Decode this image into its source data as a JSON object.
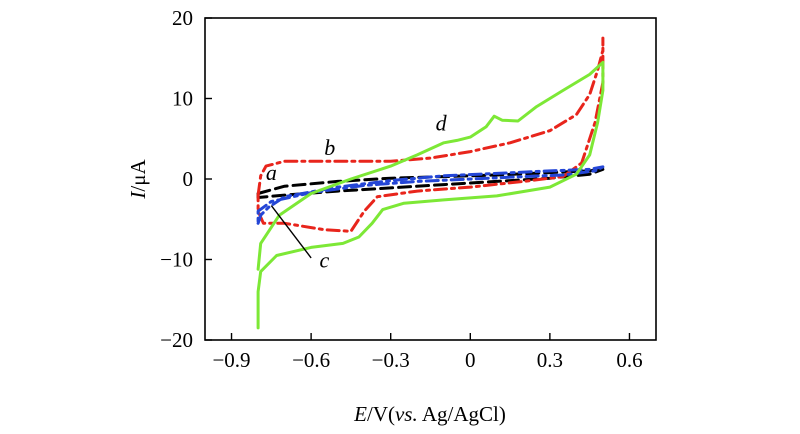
{
  "chart_data": {
    "type": "line",
    "xlabel": {
      "var": "E",
      "unit": "/V(",
      "ref_italic": "vs.",
      "ref": " Ag/AgCl)"
    },
    "ylabel": {
      "var": "I",
      "unit": "/μA"
    },
    "xlim": [
      -1.0,
      0.7
    ],
    "ylim": [
      -20,
      20
    ],
    "xticks": [
      -0.9,
      -0.6,
      -0.3,
      0,
      0.3,
      0.6
    ],
    "xtick_labels": [
      "−0.9",
      "−0.6",
      "−0.3",
      "0",
      "0.3",
      "0.6"
    ],
    "yticks": [
      -20,
      -10,
      0,
      10,
      20
    ],
    "ytick_labels": [
      "−20",
      "−10",
      "0",
      "10",
      "20"
    ],
    "grid": false,
    "series": [
      {
        "name": "a",
        "color": "#000000",
        "dash": "dash",
        "points": [
          [
            -0.8,
            -1.8
          ],
          [
            -0.7,
            -0.9
          ],
          [
            -0.5,
            -0.3
          ],
          [
            -0.3,
            0.1
          ],
          [
            -0.1,
            0.3
          ],
          [
            0.1,
            0.5
          ],
          [
            0.3,
            0.8
          ],
          [
            0.45,
            1.0
          ],
          [
            0.5,
            1.2
          ],
          [
            0.45,
            0.6
          ],
          [
            0.3,
            0.1
          ],
          [
            0.1,
            -0.3
          ],
          [
            -0.1,
            -0.7
          ],
          [
            -0.3,
            -1.1
          ],
          [
            -0.5,
            -1.5
          ],
          [
            -0.7,
            -2.0
          ],
          [
            -0.8,
            -2.3
          ],
          [
            -0.8,
            -1.8
          ]
        ]
      },
      {
        "name": "b",
        "color": "#e8251c",
        "dash": "dashdot",
        "points": [
          [
            -0.8,
            -2.0
          ],
          [
            -0.79,
            0.4
          ],
          [
            -0.77,
            1.6
          ],
          [
            -0.7,
            2.2
          ],
          [
            -0.5,
            2.2
          ],
          [
            -0.3,
            2.2
          ],
          [
            -0.15,
            2.6
          ],
          [
            0.0,
            3.4
          ],
          [
            0.15,
            4.5
          ],
          [
            0.3,
            6.0
          ],
          [
            0.4,
            8.0
          ],
          [
            0.45,
            10.5
          ],
          [
            0.48,
            13.5
          ],
          [
            0.5,
            16.0
          ],
          [
            0.5,
            17.5
          ],
          [
            0.5,
            12.0
          ],
          [
            0.47,
            7.0
          ],
          [
            0.42,
            2.0
          ],
          [
            0.35,
            0.3
          ],
          [
            0.2,
            -0.3
          ],
          [
            0.0,
            -1.0
          ],
          [
            -0.2,
            -1.5
          ],
          [
            -0.35,
            -2.2
          ],
          [
            -0.4,
            -4.0
          ],
          [
            -0.45,
            -6.5
          ],
          [
            -0.55,
            -6.3
          ],
          [
            -0.7,
            -5.5
          ],
          [
            -0.78,
            -5.5
          ],
          [
            -0.8,
            -4.0
          ],
          [
            -0.8,
            -2.0
          ]
        ]
      },
      {
        "name": "c",
        "color": "#2446d6",
        "dash": "dashdot",
        "points": [
          [
            -0.8,
            -5.5
          ],
          [
            -0.79,
            -4.5
          ],
          [
            -0.76,
            -3.5
          ],
          [
            -0.7,
            -2.2
          ],
          [
            -0.5,
            -1.0
          ],
          [
            -0.3,
            -0.2
          ],
          [
            -0.1,
            0.4
          ],
          [
            0.1,
            0.7
          ],
          [
            0.3,
            1.0
          ],
          [
            0.45,
            1.2
          ],
          [
            0.5,
            1.5
          ],
          [
            0.47,
            1.0
          ],
          [
            0.35,
            0.5
          ],
          [
            0.2,
            0.3
          ],
          [
            0.0,
            0.0
          ],
          [
            -0.2,
            -0.3
          ],
          [
            -0.4,
            -0.8
          ],
          [
            -0.6,
            -1.7
          ],
          [
            -0.75,
            -2.8
          ],
          [
            -0.8,
            -4.0
          ],
          [
            -0.8,
            -5.5
          ]
        ]
      },
      {
        "name": "d",
        "color": "#7de836",
        "dash": "solid",
        "points": [
          [
            -0.8,
            -18.5
          ],
          [
            -0.8,
            -14.0
          ],
          [
            -0.79,
            -11.5
          ],
          [
            -0.73,
            -9.5
          ],
          [
            -0.6,
            -8.5
          ],
          [
            -0.48,
            -8.0
          ],
          [
            -0.42,
            -7.2
          ],
          [
            -0.37,
            -5.5
          ],
          [
            -0.33,
            -3.8
          ],
          [
            -0.25,
            -3.0
          ],
          [
            -0.1,
            -2.6
          ],
          [
            0.1,
            -2.1
          ],
          [
            0.3,
            -1.0
          ],
          [
            0.4,
            0.6
          ],
          [
            0.45,
            3.0
          ],
          [
            0.48,
            7.0
          ],
          [
            0.5,
            11.0
          ],
          [
            0.5,
            14.5
          ],
          [
            0.45,
            13.0
          ],
          [
            0.35,
            11.0
          ],
          [
            0.25,
            9.0
          ],
          [
            0.18,
            7.2
          ],
          [
            0.12,
            7.3
          ],
          [
            0.09,
            7.8
          ],
          [
            0.06,
            6.5
          ],
          [
            0.0,
            5.2
          ],
          [
            -0.05,
            4.8
          ],
          [
            -0.1,
            4.5
          ],
          [
            -0.2,
            3.0
          ],
          [
            -0.3,
            1.6
          ],
          [
            -0.45,
            0.0
          ],
          [
            -0.6,
            -1.8
          ],
          [
            -0.72,
            -4.5
          ],
          [
            -0.79,
            -8.0
          ],
          [
            -0.8,
            -11.2
          ]
        ]
      }
    ],
    "annotations": [
      {
        "text": "a",
        "x": -0.75,
        "y": -0.1
      },
      {
        "text": "b",
        "x": -0.53,
        "y": 3.0
      },
      {
        "text": "c",
        "x": -0.55,
        "y": -11.0
      },
      {
        "text": "d",
        "x": -0.11,
        "y": 6.0
      }
    ],
    "leader_line": {
      "from": [
        -0.6,
        -9.8
      ],
      "to": [
        -0.75,
        -3.3
      ]
    }
  }
}
